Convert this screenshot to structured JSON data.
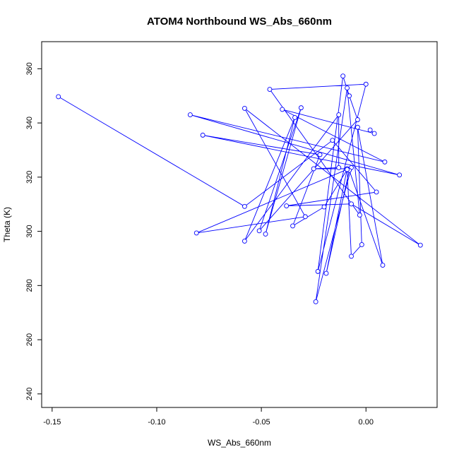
{
  "chart_data": {
    "type": "line",
    "title": "ATOM4 Northbound WS_Abs_660nm",
    "xlabel": "WS_Abs_660nm",
    "ylabel": "Theta (K)",
    "xlim": [
      -0.155,
      0.034
    ],
    "ylim": [
      235,
      370
    ],
    "x_ticks": [
      -0.15,
      -0.1,
      -0.05,
      0.0
    ],
    "x_tick_labels": [
      "-0.15",
      "-0.10",
      "-0.05",
      "0.00"
    ],
    "y_ticks": [
      240,
      260,
      280,
      300,
      320,
      340,
      360
    ],
    "y_tick_labels": [
      "240",
      "260",
      "280",
      "300",
      "320",
      "340",
      "360"
    ],
    "grid": false,
    "legend": "none",
    "colors": {
      "series": "#0000ff",
      "frame": "#000000"
    },
    "series": [
      {
        "style": "line-with-open-circles",
        "points": [
          {
            "x": -0.147,
            "y": 349.7
          },
          {
            "x": -0.058,
            "y": 309.2
          },
          {
            "x": -0.016,
            "y": 333.6
          },
          {
            "x": 0.005,
            "y": 314.5
          },
          {
            "x": -0.038,
            "y": 309.4
          },
          {
            "x": -0.007,
            "y": 310.1
          },
          {
            "x": 0.026,
            "y": 294.9
          },
          {
            "x": -0.058,
            "y": 345.4
          },
          {
            "x": -0.029,
            "y": 305.4
          },
          {
            "x": -0.081,
            "y": 299.4
          },
          {
            "x": -0.007,
            "y": 323.5
          },
          {
            "x": -0.024,
            "y": 274.0
          },
          {
            "x": -0.009,
            "y": 352.9
          },
          {
            "x": -0.003,
            "y": 306.0
          },
          {
            "x": -0.046,
            "y": 352.4
          },
          {
            "x": 0.0,
            "y": 354.3
          },
          {
            "x": -0.023,
            "y": 285.2
          },
          {
            "x": -0.011,
            "y": 357.3
          },
          {
            "x": -0.008,
            "y": 350.0
          },
          {
            "x": -0.004,
            "y": 341.2
          },
          {
            "x": -0.051,
            "y": 300.2
          },
          {
            "x": -0.031,
            "y": 345.6
          },
          {
            "x": -0.048,
            "y": 299.0
          },
          {
            "x": -0.034,
            "y": 342.0
          },
          {
            "x": -0.058,
            "y": 296.4
          },
          {
            "x": -0.013,
            "y": 343.0
          },
          {
            "x": -0.013,
            "y": 323.5
          },
          {
            "x": -0.025,
            "y": 323.1
          },
          {
            "x": -0.009,
            "y": 323.1
          },
          {
            "x": -0.019,
            "y": 284.5
          },
          {
            "x": -0.008,
            "y": 322.5
          },
          {
            "x": 0.008,
            "y": 287.5
          },
          {
            "x": -0.004,
            "y": 338.4
          },
          {
            "x": -0.002,
            "y": 295.1
          },
          {
            "x": -0.007,
            "y": 290.8
          },
          {
            "x": -0.009,
            "y": 322.8
          },
          {
            "x": -0.02,
            "y": 309.0
          },
          {
            "x": -0.035,
            "y": 302.0
          },
          {
            "x": -0.022,
            "y": 328.3
          },
          {
            "x": -0.078,
            "y": 335.5
          },
          {
            "x": 0.016,
            "y": 320.8
          },
          {
            "x": -0.084,
            "y": 343.0
          },
          {
            "x": 0.009,
            "y": 325.6
          },
          {
            "x": -0.04,
            "y": 345.0
          },
          {
            "x": 0.004,
            "y": 336.1
          },
          {
            "x": 0.002,
            "y": 337.4
          }
        ]
      }
    ]
  }
}
